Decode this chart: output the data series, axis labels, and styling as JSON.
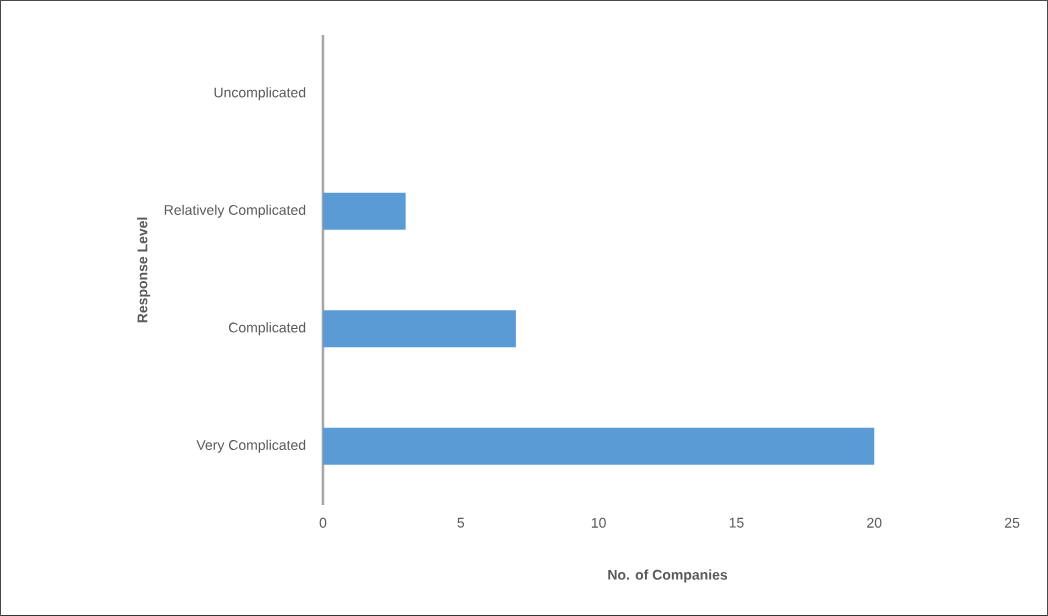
{
  "chart_data": {
    "type": "bar",
    "orientation": "horizontal",
    "xlabel": "No. of Companies",
    "ylabel": "Response Level",
    "categories": [
      "Uncomplicated",
      "Relatively Complicated",
      "Complicated",
      "Very Complicated"
    ],
    "values": [
      0,
      3,
      7,
      20
    ],
    "color": "#5b9bd5",
    "xlim": [
      0,
      25
    ],
    "xticks": [
      0,
      5,
      10,
      15,
      20,
      25
    ]
  }
}
